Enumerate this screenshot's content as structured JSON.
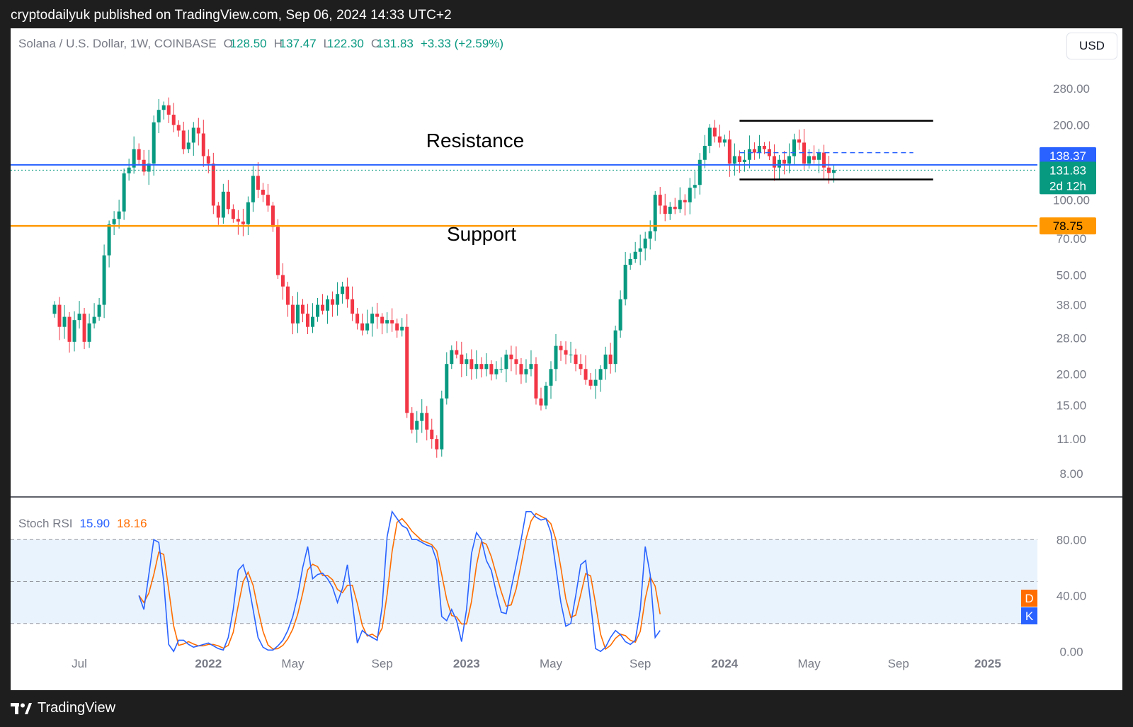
{
  "caption": "cryptodailyuk published on TradingView.com, Sep 06, 2024 14:33 UTC+2",
  "legend": {
    "symbol": "Solana / U.S. Dollar, 1W, COINBASE",
    "open_label": "O",
    "open": "128.50",
    "high_label": "H",
    "high": "137.47",
    "low_label": "L",
    "low": "122.30",
    "close_label": "C",
    "close": "131.83",
    "change": "+3.33 (+2.59%)"
  },
  "currency_button": "USD",
  "price_tags": {
    "resistance_value": "138.37",
    "last_value": "131.83",
    "countdown": "2d 12h",
    "support_value": "78.75"
  },
  "annotations": {
    "resistance": "Resistance",
    "support": "Support"
  },
  "stoch_legend": {
    "name": "Stoch RSI",
    "k": "15.90",
    "d": "18.16"
  },
  "stoch_tags": {
    "d": "D",
    "k": "K"
  },
  "footer": {
    "brand": "TradingView"
  },
  "colors": {
    "up": "#089981",
    "down": "#f23645",
    "resistance": "#2962ff",
    "support": "#ff9800",
    "k_line": "#2962ff",
    "d_line": "#ff6d00",
    "band": "#e8f3fd",
    "last_tag": "#089981"
  },
  "chart_data": [
    {
      "type": "candlestick",
      "scale": "log",
      "ylim": [
        7.2,
        330
      ],
      "y_ticks": [
        280,
        200,
        100,
        70,
        50,
        38,
        28,
        20,
        15,
        11,
        8
      ],
      "y_tick_labels": [
        "280.00",
        "200.00",
        "100.00",
        "70.00",
        "50.00",
        "38.00",
        "28.00",
        "20.00",
        "15.00",
        "11.00",
        "8.00"
      ],
      "x_ticks": [
        {
          "label": "Jul",
          "bold": false,
          "week": 5
        },
        {
          "label": "2022",
          "bold": true,
          "week": 31
        },
        {
          "label": "May",
          "bold": false,
          "week": 48
        },
        {
          "label": "Sep",
          "bold": false,
          "week": 66
        },
        {
          "label": "2023",
          "bold": true,
          "week": 83
        },
        {
          "label": "May",
          "bold": false,
          "week": 100
        },
        {
          "label": "Sep",
          "bold": false,
          "week": 118
        },
        {
          "label": "2024",
          "bold": true,
          "week": 135
        },
        {
          "label": "May",
          "bold": false,
          "week": 152
        },
        {
          "label": "Sep",
          "bold": false,
          "week": 170
        },
        {
          "label": "2025",
          "bold": true,
          "week": 188
        }
      ],
      "resistance_level": 138.37,
      "support_level": 78.75,
      "last_price": 131.83,
      "range_box": {
        "week_start": 138,
        "week_end": 177,
        "top": 208,
        "mid": 155,
        "bottom": 121
      },
      "closes": [
        38,
        31,
        34,
        27,
        33,
        35,
        27,
        32,
        34,
        38,
        60,
        80,
        84,
        90,
        128,
        135,
        160,
        145,
        130,
        140,
        205,
        230,
        240,
        220,
        200,
        190,
        160,
        170,
        195,
        185,
        150,
        140,
        95,
        85,
        108,
        92,
        84,
        82,
        80,
        98,
        125,
        110,
        105,
        95,
        78,
        50,
        45,
        38,
        32,
        38,
        35,
        31,
        34,
        38,
        36,
        40,
        38,
        42,
        45,
        40,
        35,
        32,
        30,
        32,
        35,
        34,
        32,
        33,
        32,
        30,
        31,
        14,
        12,
        13,
        14,
        12,
        11,
        10,
        16,
        22,
        25,
        24,
        22,
        23,
        21,
        22,
        21,
        22,
        20,
        21,
        21,
        24,
        23,
        22,
        20,
        21,
        22,
        16,
        15,
        18,
        21,
        26,
        25,
        24,
        24,
        22,
        21,
        19,
        18,
        19,
        21,
        24,
        22,
        30,
        40,
        55,
        58,
        62,
        64,
        70,
        75,
        105,
        95,
        88,
        94,
        92,
        100,
        98,
        112,
        115,
        145,
        165,
        195,
        180,
        170,
        175,
        140,
        150,
        142,
        145,
        160,
        155,
        165,
        160,
        150,
        135,
        145,
        140,
        150,
        175,
        170,
        140,
        150,
        145,
        155,
        135,
        128.5,
        131.83
      ],
      "start_week": 0
    },
    {
      "type": "line",
      "name": "Stoch RSI",
      "ylim": [
        -10,
        110
      ],
      "bands": [
        20,
        50,
        80
      ],
      "y_tick_labels": [
        "80.00",
        "40.00",
        "0.00"
      ],
      "y_ticks": [
        80,
        40,
        0
      ],
      "k_start_week": 17,
      "k": [
        40,
        30,
        55,
        80,
        78,
        50,
        5,
        0,
        8,
        8,
        5,
        3,
        4,
        5,
        6,
        4,
        2,
        1,
        10,
        30,
        58,
        62,
        50,
        30,
        10,
        3,
        1,
        1,
        4,
        8,
        15,
        25,
        40,
        60,
        75,
        52,
        55,
        56,
        52,
        46,
        35,
        45,
        62,
        35,
        6,
        15,
        12,
        10,
        8,
        32,
        82,
        100,
        95,
        90,
        88,
        80,
        80,
        78,
        76,
        75,
        65,
        25,
        22,
        30,
        22,
        7,
        30,
        70,
        85,
        80,
        65,
        58,
        42,
        28,
        27,
        45,
        62,
        80,
        100,
        100,
        96,
        94,
        95,
        85,
        60,
        35,
        18,
        20,
        40,
        62,
        65,
        35,
        2,
        0,
        3,
        10,
        15,
        12,
        7,
        5,
        8,
        30,
        75,
        55,
        10,
        15
      ]
    }
  ]
}
